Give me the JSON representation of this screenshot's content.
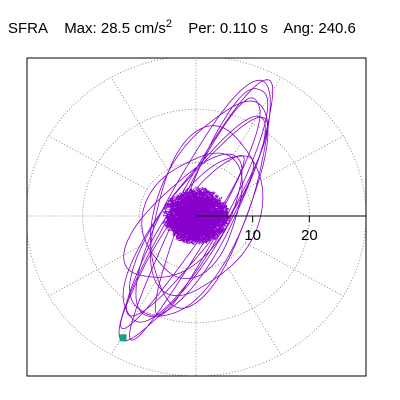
{
  "header": {
    "component": "SFRA",
    "max_label": "Max:",
    "max_value": "28.5 cm/s",
    "max_exp": "2",
    "per_label": "Per:",
    "per_value": "0.110 s",
    "ang_label": "Ang:",
    "ang_value": "240.6"
  },
  "chart_data": {
    "type": "polar-trace",
    "title": "SFRA  Max: 28.5 cm/s2  Per: 0.110 s  Ang: 240.6",
    "radial_ticks": [
      10,
      20
    ],
    "radial_tick_labels": [
      "10",
      "20"
    ],
    "rmax": 30,
    "grid": "dotted",
    "angular_divisions": 12,
    "peak_marker": {
      "angle_deg": 240.6,
      "radius": 28.5,
      "color": "#1aa089"
    },
    "trace_color": "#8800cc",
    "series": [
      {
        "major": 27,
        "minor": 5.0,
        "tilt_deg": 62,
        "cx": 0.8,
        "cy": 0.6
      },
      {
        "major": 24,
        "minor": 7.0,
        "tilt_deg": 66,
        "cx": 1.8,
        "cy": 1.6
      },
      {
        "major": 22,
        "minor": 5.5,
        "tilt_deg": 58,
        "cx": -0.8,
        "cy": -1.5
      },
      {
        "major": 20,
        "minor": 8.0,
        "tilt_deg": 70,
        "cx": 2.0,
        "cy": 2.5
      },
      {
        "major": 18,
        "minor": 4.5,
        "tilt_deg": 55,
        "cx": -1.2,
        "cy": -2.6
      },
      {
        "major": 25,
        "minor": 3.5,
        "tilt_deg": 64,
        "cx": 0.5,
        "cy": 0.9
      },
      {
        "major": 16,
        "minor": 9.0,
        "tilt_deg": 74,
        "cx": 1.6,
        "cy": 0.8
      },
      {
        "major": 14,
        "minor": 6.5,
        "tilt_deg": 50,
        "cx": -1.8,
        "cy": -0.8
      },
      {
        "major": 21,
        "minor": 6.0,
        "tilt_deg": 60,
        "cx": 0.0,
        "cy": -1.0
      },
      {
        "major": 12,
        "minor": 8.0,
        "tilt_deg": 68,
        "cx": -0.5,
        "cy": 0.3
      },
      {
        "major": 19,
        "minor": 3.0,
        "tilt_deg": 57,
        "cx": -2.5,
        "cy": -4.0
      },
      {
        "major": 23,
        "minor": 4.0,
        "tilt_deg": 67,
        "cx": 3.0,
        "cy": 4.2
      }
    ]
  }
}
